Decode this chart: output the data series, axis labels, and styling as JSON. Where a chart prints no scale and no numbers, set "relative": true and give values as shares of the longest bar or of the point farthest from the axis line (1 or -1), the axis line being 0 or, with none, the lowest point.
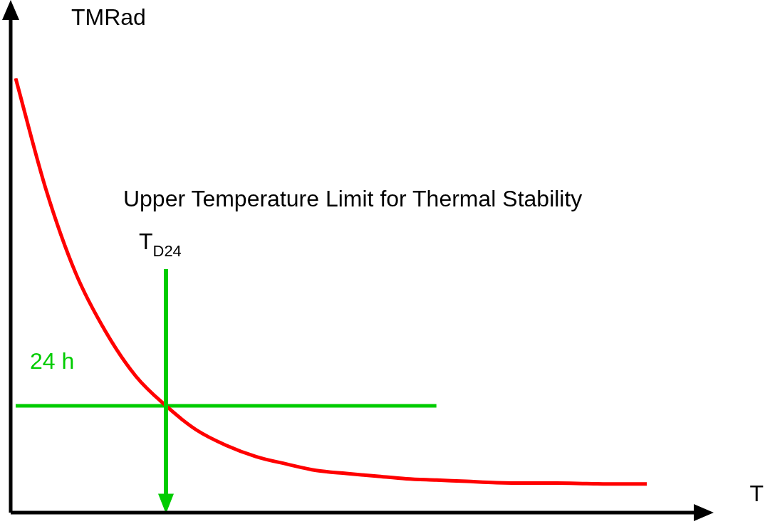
{
  "chart_data": {
    "type": "line",
    "relative": true,
    "xlabel": "T",
    "ylabel": "TMRad",
    "legend": false,
    "marker": "none",
    "line_style": "solid",
    "annotations": [
      "Upper Temperature Limit for Thermal Stability",
      "T$_{D24}$"
    ],
    "categories": [
      null,
      null,
      null,
      null,
      null,
      null,
      null,
      null,
      null,
      null,
      null,
      null,
      null,
      null,
      null,
      null,
      null,
      null,
      null,
      null,
      null,
      null
    ],
    "series": [
      {
        "color": "#ff0000",
        "values": [
          1.0,
          0.746,
          0.551,
          0.416,
          0.314,
          0.246,
          0.191,
          0.155,
          0.129,
          0.112,
          0.097,
          0.09,
          0.084,
          0.078,
          0.075,
          0.072,
          0.069,
          0.068,
          0.068,
          0.067,
          0.066,
          0.066
        ]
      },
      {
        "name": "24 h",
        "color": "#00cc00",
        "values": [
          0.246,
          0.246,
          0.246,
          0.246,
          0.246,
          0.246,
          0.246,
          0.246,
          0.246,
          0.246,
          0.246,
          0.246,
          0.246,
          0.246,
          0.246,
          null,
          null,
          null,
          null,
          null,
          null,
          null
        ]
      }
    ]
  }
}
